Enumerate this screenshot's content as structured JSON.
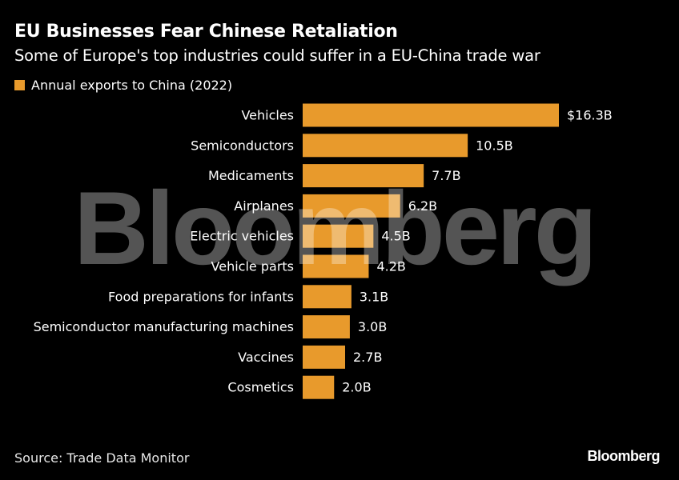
{
  "header": {
    "title": "EU Businesses Fear Chinese Retaliation",
    "subtitle": "Some of Europe's top industries could suffer in a EU-China trade war"
  },
  "legend": {
    "label": "Annual exports to China (2022)",
    "color": "#E89A2C"
  },
  "chart_data": {
    "type": "bar",
    "orientation": "horizontal",
    "categories": [
      "Vehicles",
      "Semiconductors",
      "Medicaments",
      "Airplanes",
      "Electric vehicles",
      "Vehicle parts",
      "Food preparations for infants",
      "Semiconductor manufacturing machines",
      "Vaccines",
      "Cosmetics"
    ],
    "series": [
      {
        "name": "Annual exports to China (2022)",
        "values": [
          16.3,
          10.5,
          7.7,
          6.2,
          4.5,
          4.2,
          3.1,
          3.0,
          2.7,
          2.0
        ]
      }
    ],
    "data_labels": [
      "$16.3B",
      "10.5B",
      "7.7B",
      "6.2B",
      "4.5B",
      "4.2B",
      "3.1B",
      "3.0B",
      "2.7B",
      "2.0B"
    ],
    "unit": "billion USD",
    "xlim": [
      0,
      16.3
    ],
    "grid": false,
    "legend_position": "top-left",
    "bar_color": "#E89A2C"
  },
  "watermark": "Bloomberg",
  "footer": {
    "source": "Source: Trade Data Monitor",
    "logo": "Bloomberg"
  }
}
